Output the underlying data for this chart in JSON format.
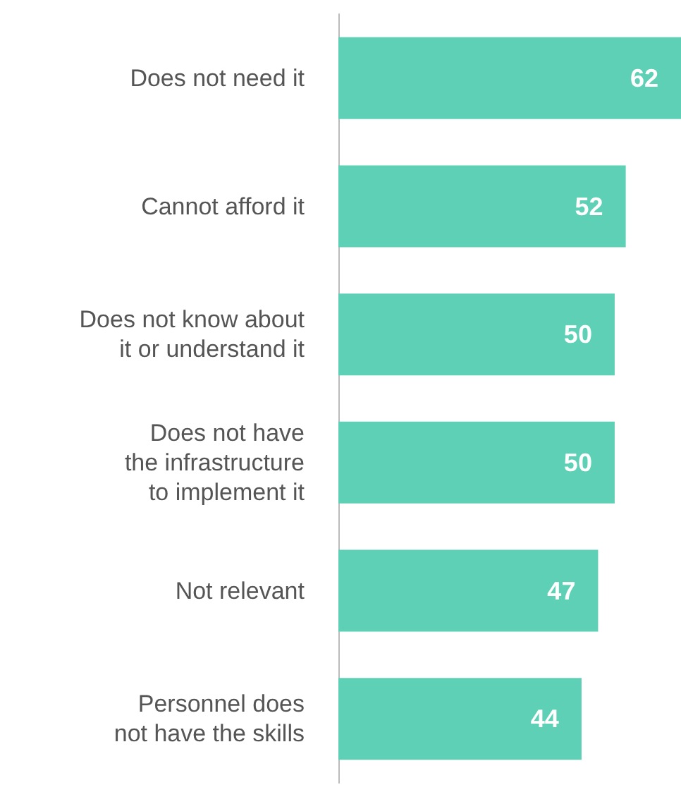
{
  "chart_data": {
    "type": "bar",
    "orientation": "horizontal",
    "categories": [
      "Does not need it",
      "Cannot afford it",
      "Does not know about\nit or understand it",
      "Does not have\nthe infrastructure\nto implement it",
      "Not relevant",
      "Personnel does\nnot have the skills"
    ],
    "values": [
      62,
      52,
      50,
      50,
      47,
      44
    ],
    "color": "#5dd0b6",
    "data_labels": true,
    "xlim": [
      0,
      62
    ],
    "tick_labels": "y"
  }
}
